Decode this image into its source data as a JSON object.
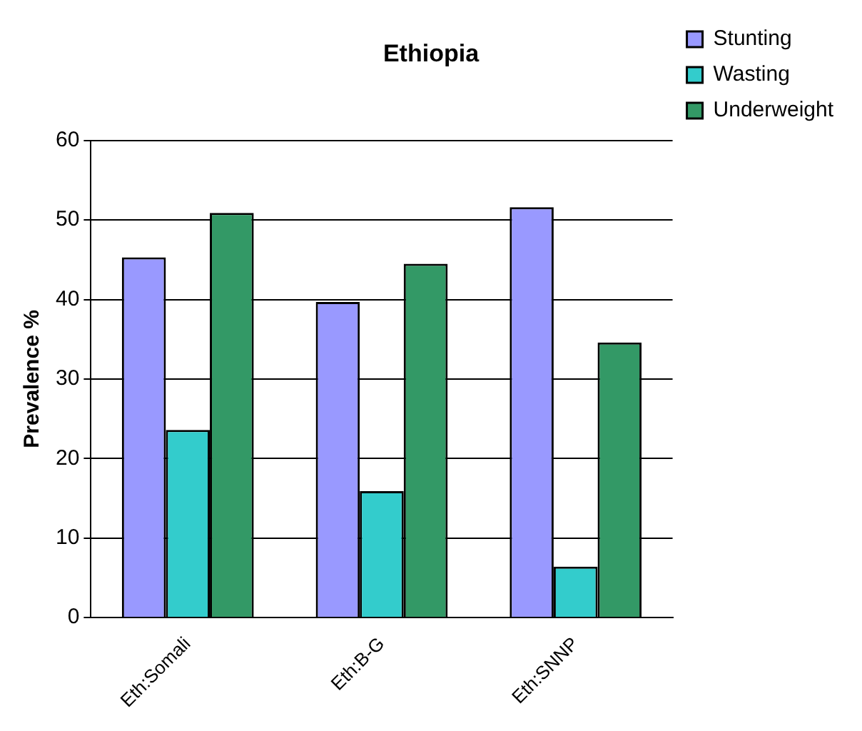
{
  "chart_data": {
    "type": "bar",
    "title": "Ethiopia",
    "ylabel": "Prevalence %",
    "categories": [
      "Eth:Somali",
      "Eth:B-G",
      "Eth:SNNP"
    ],
    "series": [
      {
        "name": "Stunting",
        "color": "#9999ff",
        "values": [
          45.3,
          39.7,
          51.6
        ]
      },
      {
        "name": "Wasting",
        "color": "#33cccc",
        "values": [
          23.6,
          15.9,
          6.4
        ]
      },
      {
        "name": "Underweight",
        "color": "#339966",
        "values": [
          50.9,
          44.5,
          34.6
        ]
      }
    ],
    "ylim": [
      0,
      60
    ],
    "yticks": [
      0,
      10,
      20,
      30,
      40,
      50,
      60
    ],
    "grid": "y",
    "legend": "right"
  }
}
